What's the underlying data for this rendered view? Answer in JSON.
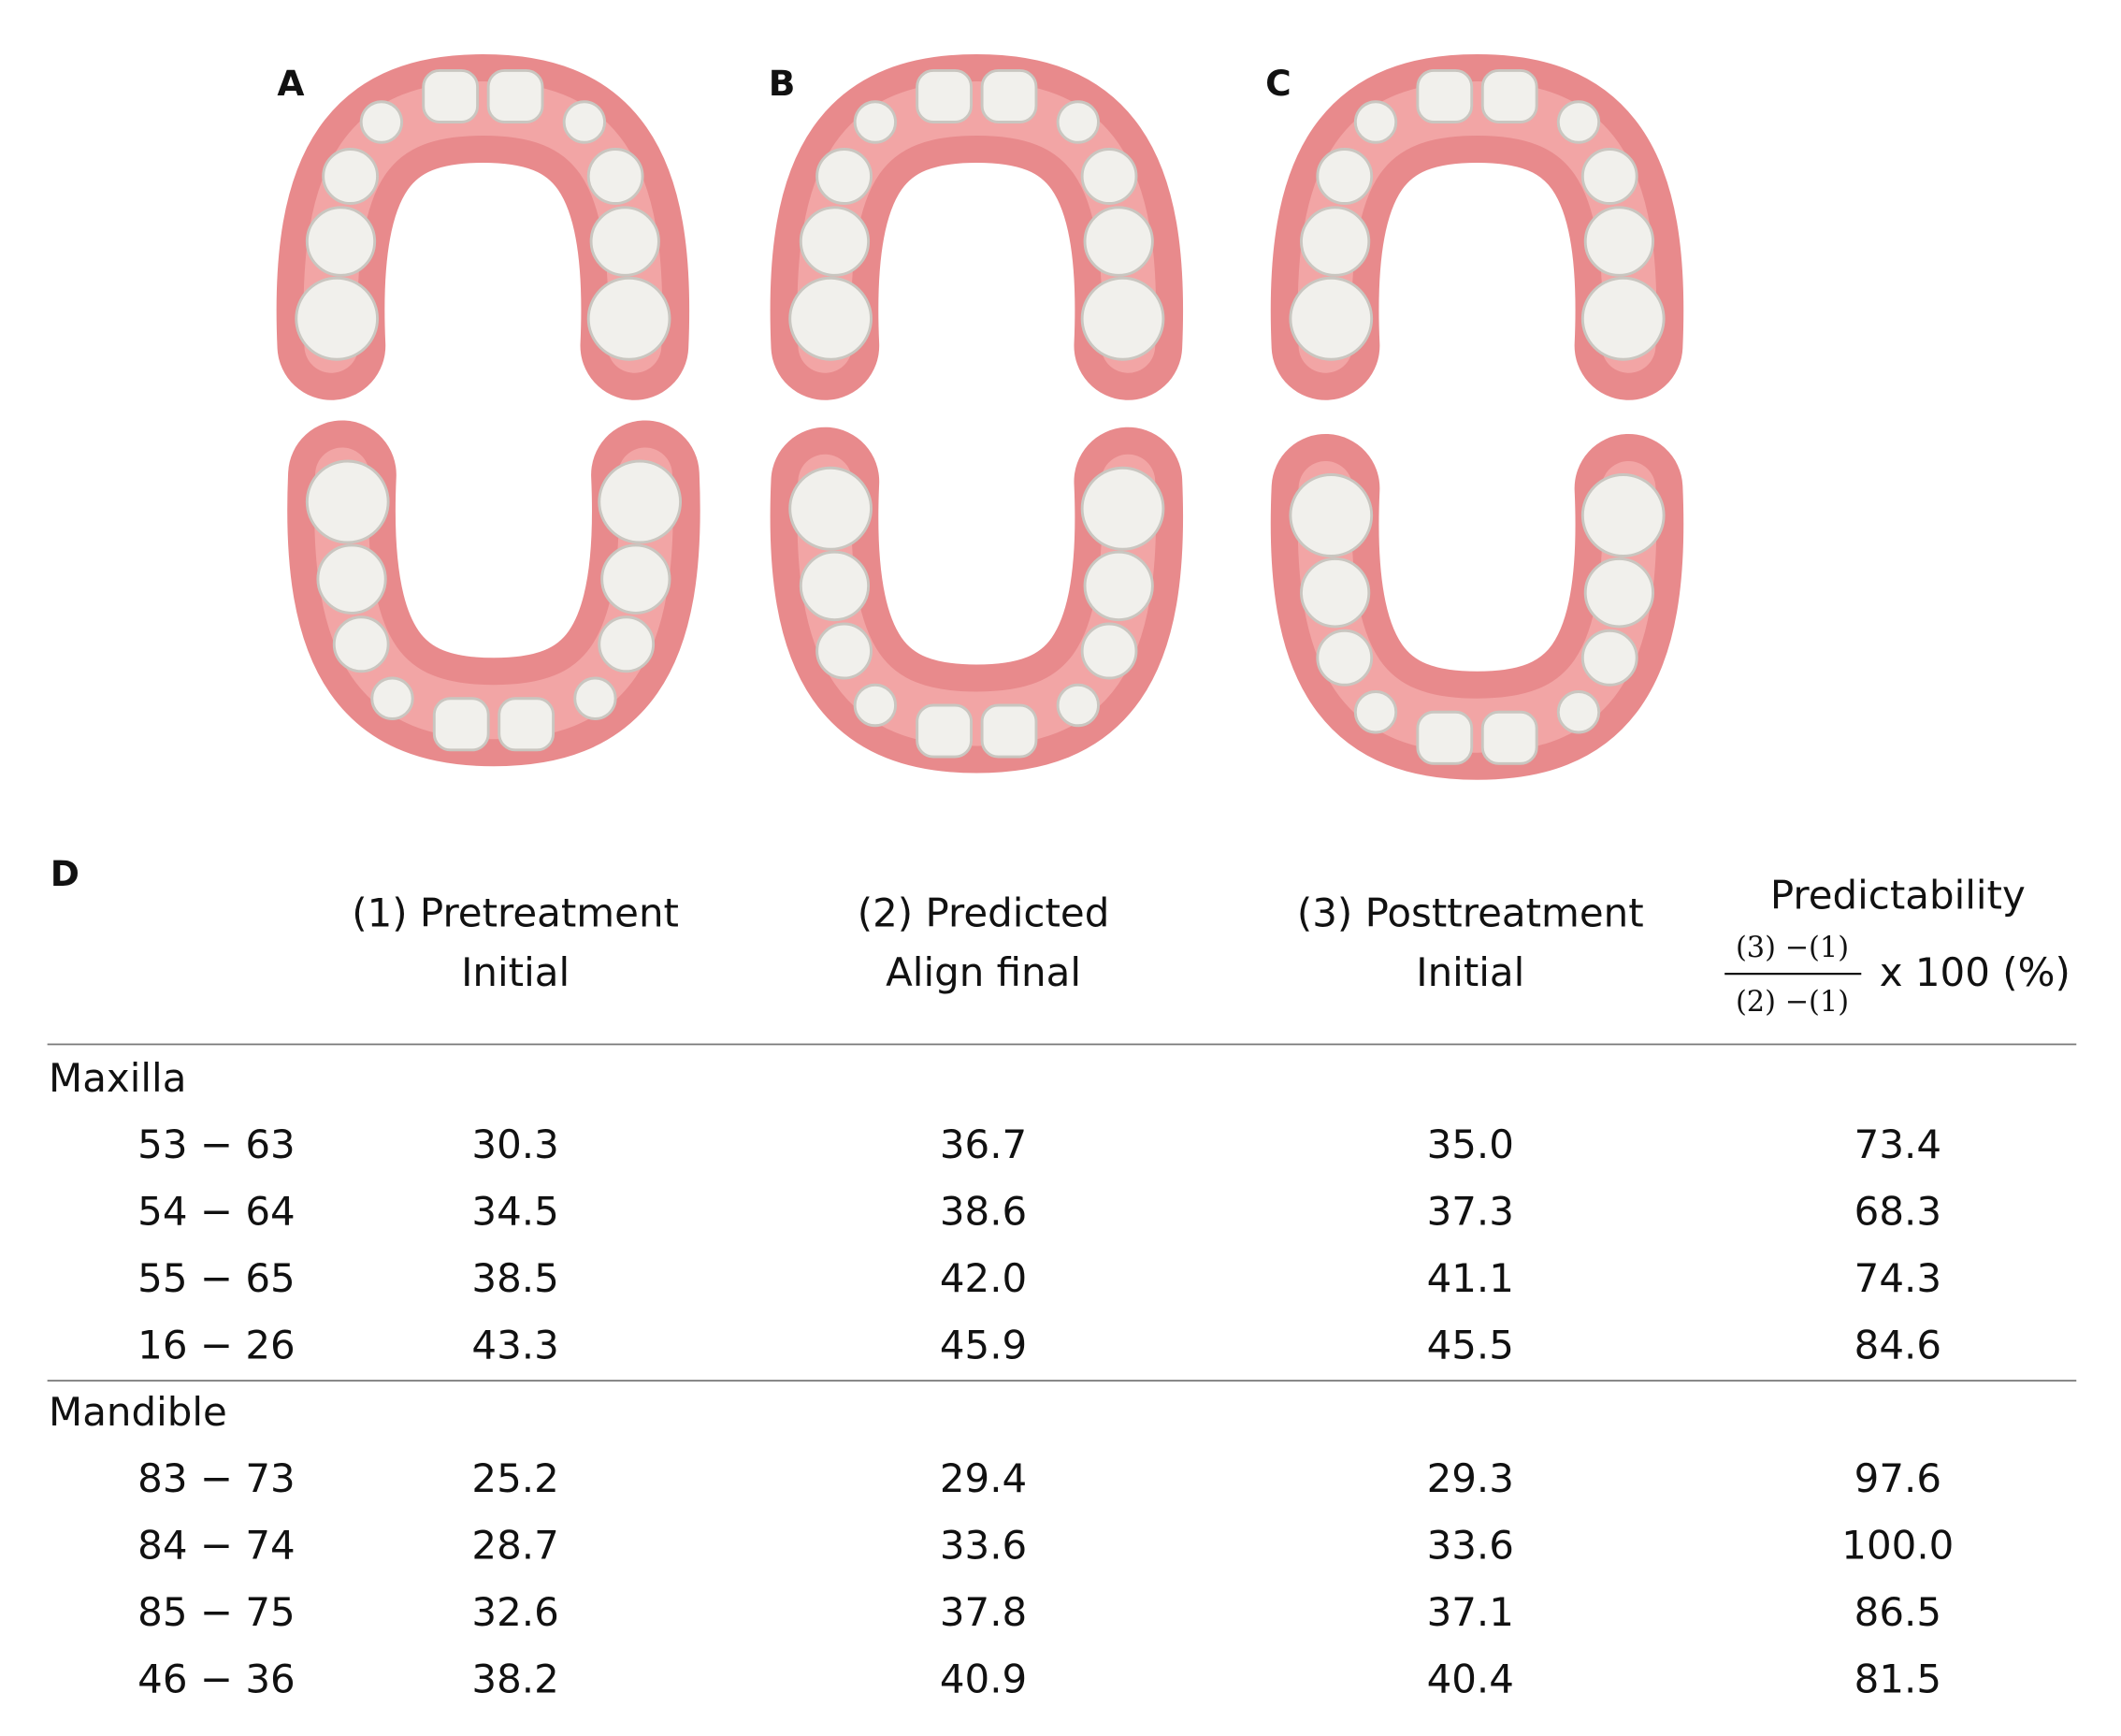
{
  "panels": [
    "A",
    "B",
    "C"
  ],
  "table": {
    "label": "D",
    "headers": [
      [
        "(1) Pretreatment",
        "Initial"
      ],
      [
        "(2) Predicted",
        "Align final"
      ],
      [
        "(3) Posttreatment",
        "Initial"
      ]
    ],
    "predictability": {
      "title": "Predictability",
      "numerator": "(3) −(1)",
      "denominator": "(2) −(1)",
      "factor": "x 100 (%)"
    },
    "groups": [
      {
        "name": "Maxilla",
        "rows": [
          [
            "53 − 63",
            "30.3",
            "36.7",
            "35.0",
            "73.4"
          ],
          [
            "54 − 64",
            "34.5",
            "38.6",
            "37.3",
            "68.3"
          ],
          [
            "55 − 65",
            "38.5",
            "42.0",
            "41.1",
            "74.3"
          ],
          [
            "16 − 26",
            "43.3",
            "45.9",
            "45.5",
            "84.6"
          ]
        ]
      },
      {
        "name": "Mandible",
        "rows": [
          [
            "83 − 73",
            "25.2",
            "29.4",
            "29.3",
            "97.6"
          ],
          [
            "84 − 74",
            "28.7",
            "33.6",
            "33.6",
            "100.0"
          ],
          [
            "85 − 75",
            "32.6",
            "37.8",
            "37.1",
            "86.5"
          ],
          [
            "46 − 36",
            "38.2",
            "40.9",
            "40.4",
            "81.5"
          ]
        ]
      }
    ]
  }
}
